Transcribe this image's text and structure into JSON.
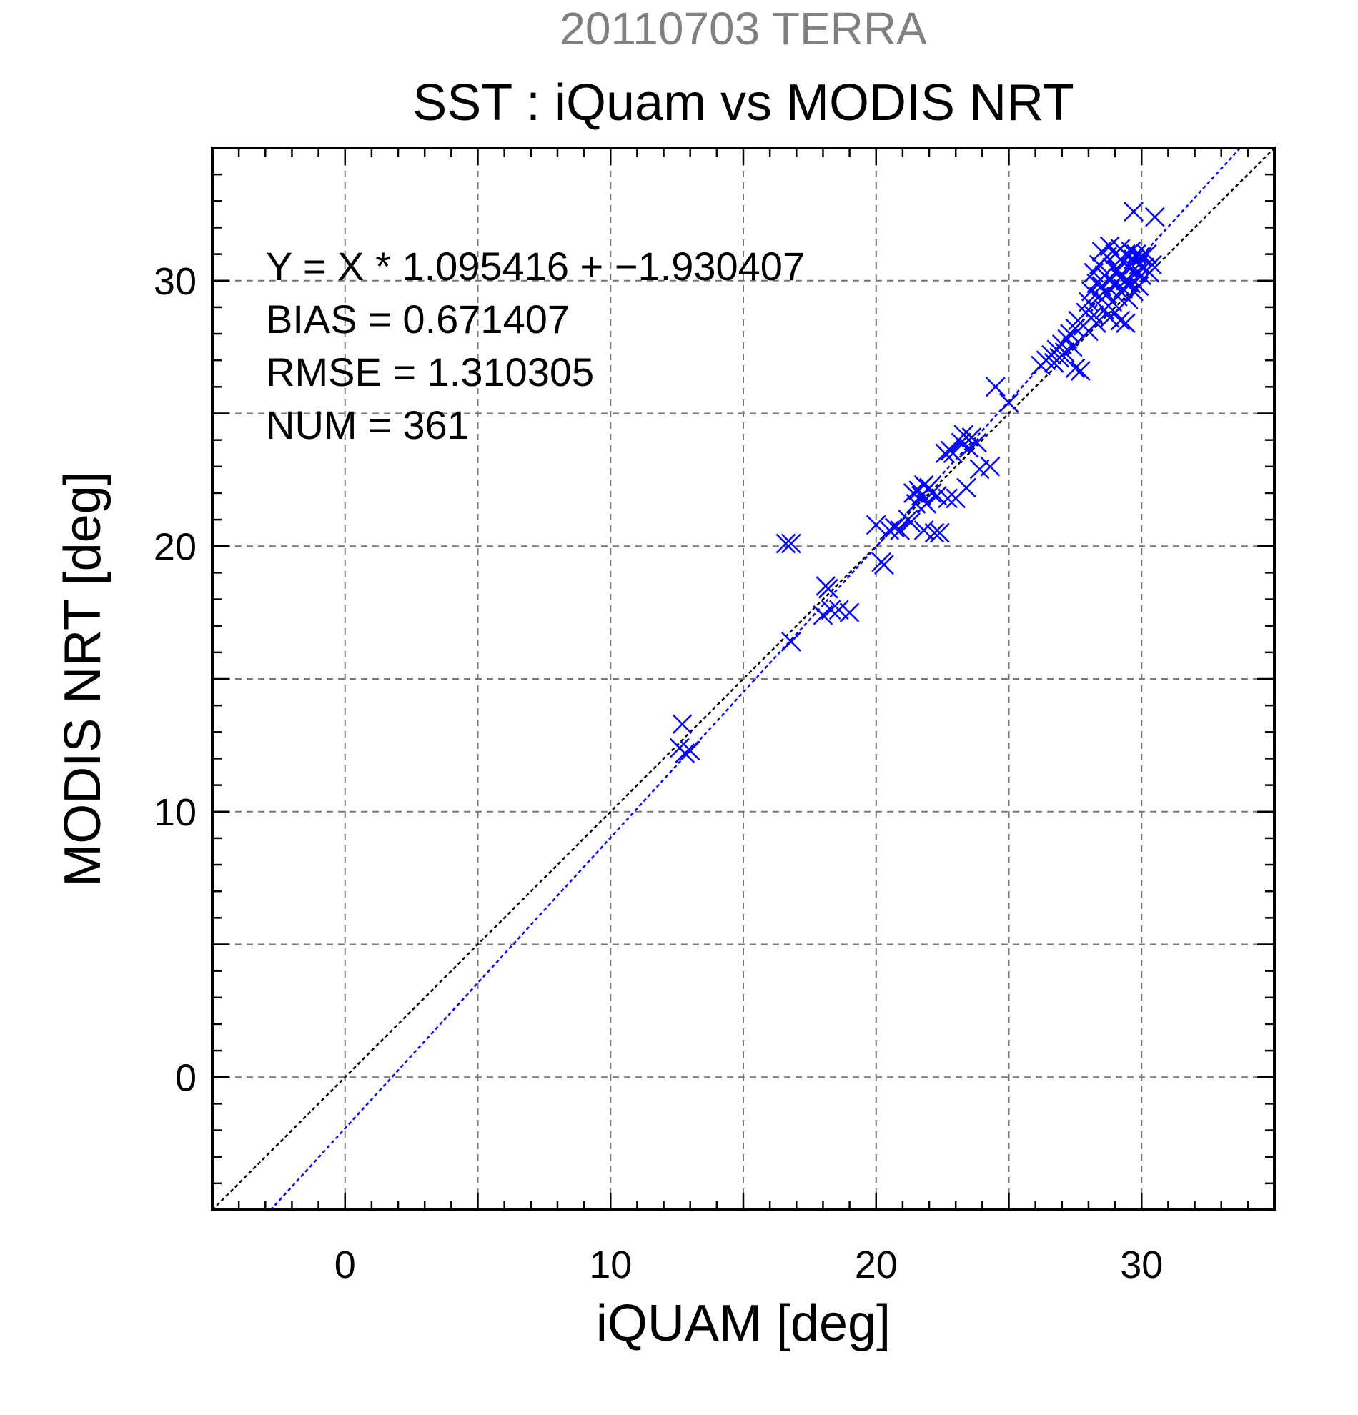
{
  "chart_data": {
    "type": "scatter",
    "supertitle": "20110703 TERRA",
    "title": "SST : iQuam vs MODIS NRT",
    "xlabel": "iQUAM [deg]",
    "ylabel": "MODIS NRT [deg]",
    "xlim": [
      -5,
      35
    ],
    "ylim": [
      -5,
      35
    ],
    "xticks": [
      0,
      10,
      20,
      30
    ],
    "yticks": [
      0,
      10,
      20,
      30
    ],
    "grid": true,
    "stats": [
      "Y = X * 1.095416 + −1.930407",
      "BIAS = 0.671407",
      "RMSE = 1.310305",
      "NUM = 361"
    ],
    "fit": {
      "slope": 1.095416,
      "intercept": -1.930407
    },
    "colors": {
      "points": "#0000ff",
      "fit_line": "#0000ff",
      "identity_line": "#000000",
      "grid": "#777777",
      "supertitle": "#808080",
      "text": "#000000"
    },
    "series": [
      {
        "marker": "x",
        "points": [
          [
            12.6,
            12.4
          ],
          [
            12.7,
            13.3
          ],
          [
            12.8,
            12.2
          ],
          [
            13.0,
            12.3
          ],
          [
            16.6,
            20.1
          ],
          [
            16.8,
            20.1
          ],
          [
            16.8,
            16.4
          ],
          [
            18.0,
            17.4
          ],
          [
            18.1,
            18.5
          ],
          [
            18.2,
            18.4
          ],
          [
            18.3,
            17.6
          ],
          [
            18.6,
            17.6
          ],
          [
            19.0,
            17.5
          ],
          [
            20.0,
            20.8
          ],
          [
            20.2,
            19.4
          ],
          [
            20.3,
            19.3
          ],
          [
            20.5,
            20.6
          ],
          [
            20.7,
            20.7
          ],
          [
            20.9,
            20.6
          ],
          [
            21.2,
            21.0
          ],
          [
            21.3,
            20.9
          ],
          [
            21.4,
            22.0
          ],
          [
            21.5,
            21.6
          ],
          [
            21.6,
            22.1
          ],
          [
            21.7,
            21.9
          ],
          [
            21.8,
            22.3
          ],
          [
            21.8,
            20.6
          ],
          [
            21.9,
            21.6
          ],
          [
            22.0,
            22.2
          ],
          [
            22.1,
            22.0
          ],
          [
            22.2,
            20.5
          ],
          [
            22.3,
            21.9
          ],
          [
            22.4,
            20.5
          ],
          [
            22.6,
            23.5
          ],
          [
            22.7,
            21.8
          ],
          [
            22.8,
            23.6
          ],
          [
            22.9,
            23.5
          ],
          [
            23.0,
            21.8
          ],
          [
            23.2,
            23.9
          ],
          [
            23.3,
            24.2
          ],
          [
            23.4,
            22.2
          ],
          [
            23.5,
            23.7
          ],
          [
            23.6,
            24.1
          ],
          [
            23.8,
            23.9
          ],
          [
            23.9,
            22.9
          ],
          [
            24.3,
            23.0
          ],
          [
            24.5,
            26.0
          ],
          [
            25.0,
            25.4
          ],
          [
            26.2,
            26.8
          ],
          [
            26.4,
            27.0
          ],
          [
            26.6,
            27.2
          ],
          [
            26.7,
            26.9
          ],
          [
            26.8,
            27.4
          ],
          [
            26.9,
            27.1
          ],
          [
            27.0,
            27.6
          ],
          [
            27.1,
            27.3
          ],
          [
            27.2,
            27.8
          ],
          [
            27.3,
            28.0
          ],
          [
            27.4,
            27.5
          ],
          [
            27.5,
            26.7
          ],
          [
            27.5,
            28.2
          ],
          [
            27.6,
            28.5
          ],
          [
            27.7,
            26.6
          ],
          [
            27.8,
            28.3
          ],
          [
            27.9,
            28.8
          ],
          [
            28.0,
            29.2
          ],
          [
            28.0,
            28.1
          ],
          [
            28.1,
            29.6
          ],
          [
            28.2,
            30.3
          ],
          [
            28.2,
            28.7
          ],
          [
            28.3,
            29.9
          ],
          [
            28.3,
            28.4
          ],
          [
            28.4,
            30.6
          ],
          [
            28.4,
            29.4
          ],
          [
            28.5,
            31.1
          ],
          [
            28.5,
            29.8
          ],
          [
            28.6,
            30.2
          ],
          [
            28.6,
            28.9
          ],
          [
            28.7,
            30.9
          ],
          [
            28.7,
            29.5
          ],
          [
            28.8,
            31.3
          ],
          [
            28.8,
            30.0
          ],
          [
            28.8,
            28.6
          ],
          [
            28.9,
            30.5
          ],
          [
            28.9,
            29.2
          ],
          [
            29.0,
            31.0
          ],
          [
            29.0,
            29.9
          ],
          [
            29.0,
            28.8
          ],
          [
            29.1,
            30.4
          ],
          [
            29.1,
            29.4
          ],
          [
            29.2,
            31.2
          ],
          [
            29.2,
            30.1
          ],
          [
            29.2,
            28.5
          ],
          [
            29.3,
            30.7
          ],
          [
            29.3,
            29.7
          ],
          [
            29.4,
            31.0
          ],
          [
            29.4,
            30.0
          ],
          [
            29.4,
            28.4
          ],
          [
            29.5,
            30.5
          ],
          [
            29.5,
            29.3
          ],
          [
            29.6,
            31.1
          ],
          [
            29.6,
            29.9
          ],
          [
            29.7,
            30.8
          ],
          [
            29.7,
            29.6
          ],
          [
            29.8,
            30.3
          ],
          [
            29.8,
            31.0
          ],
          [
            29.9,
            30.6
          ],
          [
            29.9,
            29.8
          ],
          [
            30.0,
            30.9
          ],
          [
            30.0,
            30.2
          ],
          [
            30.1,
            30.5
          ],
          [
            30.2,
            31.0
          ],
          [
            30.3,
            30.3
          ],
          [
            30.4,
            30.6
          ],
          [
            29.7,
            32.6
          ],
          [
            30.5,
            32.4
          ]
        ]
      }
    ]
  }
}
